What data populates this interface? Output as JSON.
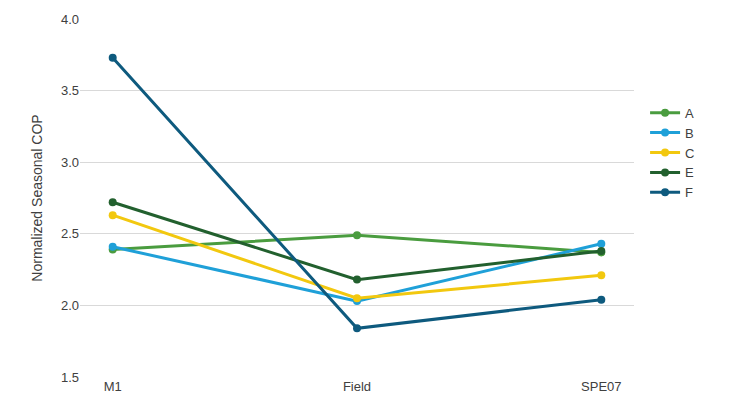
{
  "chart_data": {
    "type": "line",
    "y_label": "Normalized Seasonal COP",
    "categories": [
      "M1",
      "Field",
      "SPE07"
    ],
    "series": [
      {
        "name": "A",
        "color": "#4a9c3f",
        "values": [
          2.39,
          2.49,
          2.37
        ]
      },
      {
        "name": "B",
        "color": "#1fa0d8",
        "values": [
          2.41,
          2.03,
          2.43
        ]
      },
      {
        "name": "C",
        "color": "#f2c80f",
        "values": [
          2.63,
          2.05,
          2.21
        ]
      },
      {
        "name": "E",
        "color": "#22602e",
        "values": [
          2.72,
          2.18,
          2.38
        ]
      },
      {
        "name": "F",
        "color": "#0e5a7e",
        "values": [
          3.73,
          1.84,
          2.04
        ]
      }
    ],
    "ylim": [
      1.5,
      4.0
    ],
    "yticks": [
      1.5,
      {
        "value": 2,
        "label": "2.0"
      },
      2.5,
      {
        "value": 3,
        "label": "3.0"
      },
      3.5,
      {
        "value": 4,
        "label": "4.0"
      }
    ],
    "grid": true,
    "legend": "right",
    "marker": "circle"
  }
}
